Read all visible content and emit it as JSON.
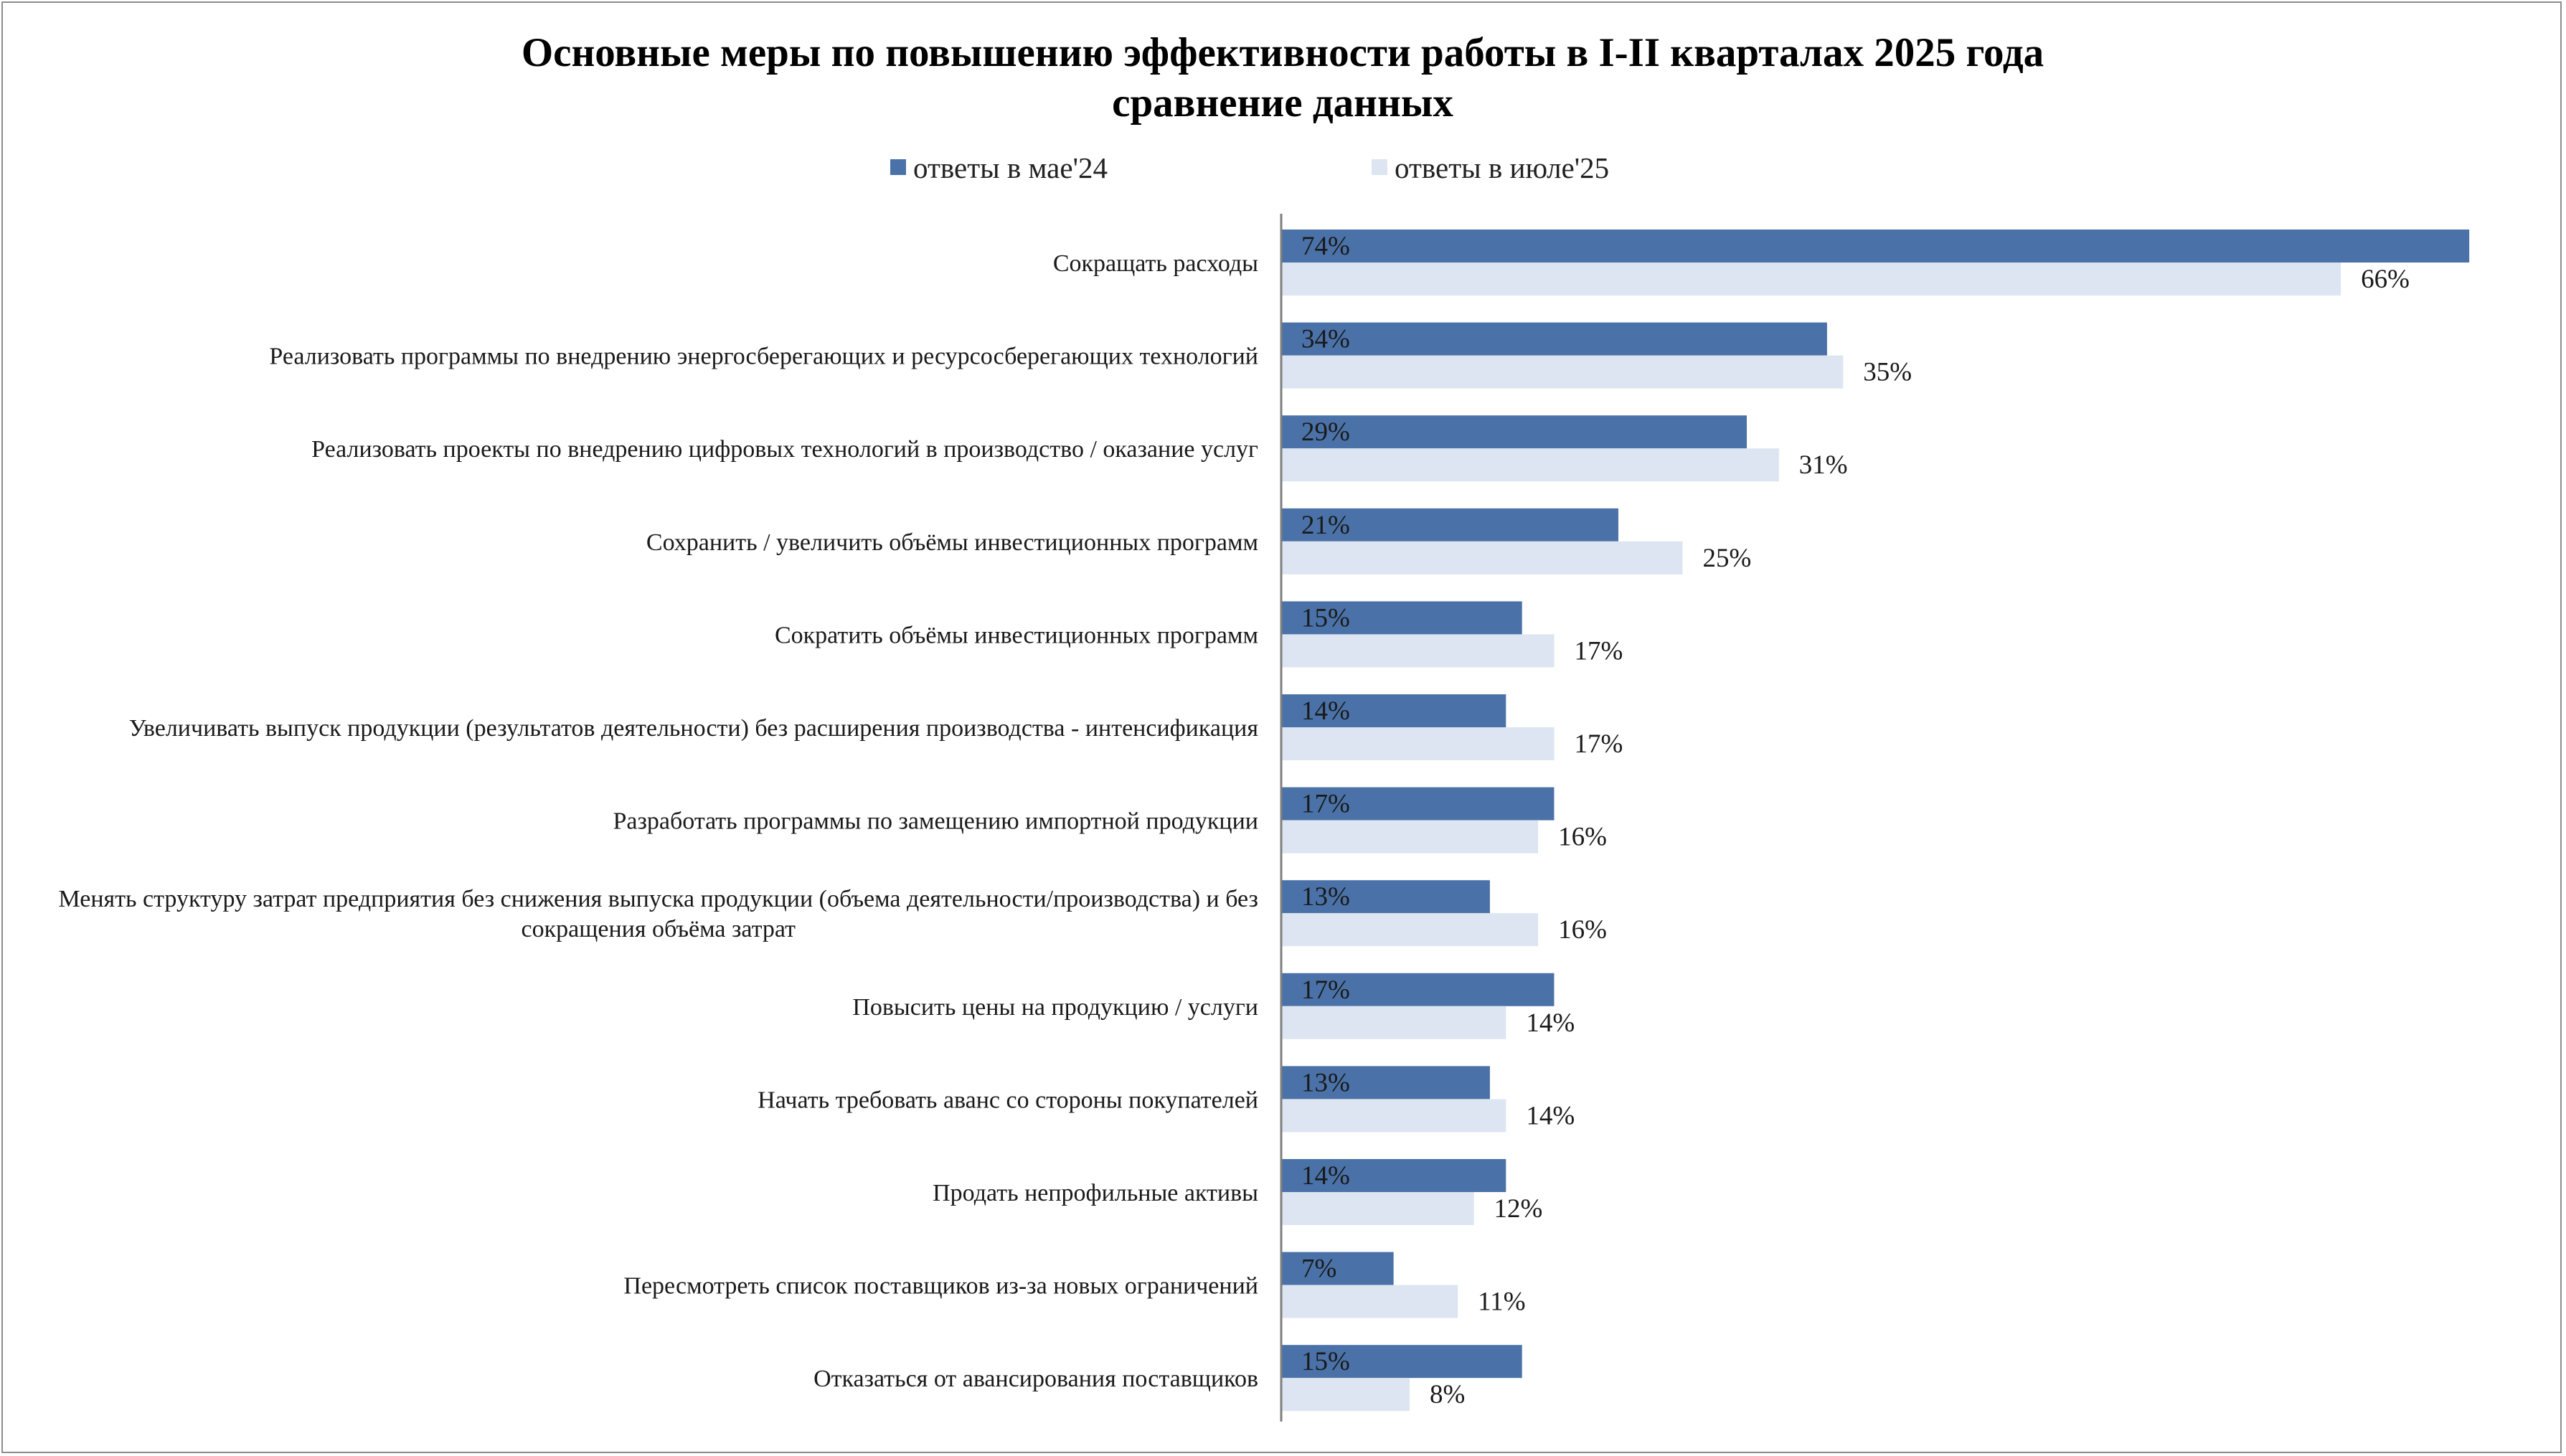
{
  "chart_data": {
    "type": "bar",
    "orientation": "horizontal",
    "title": "Основные меры по повышению эффективности работы в I-II кварталах 2025 года",
    "subtitle": "сравнение данных",
    "xlim": [
      0,
      75
    ],
    "grid": false,
    "legend_position": "top",
    "colors": {
      "series_1": "#4a72a8",
      "series_2": "#dce5f1",
      "axis": "#7f7f7f",
      "frame": "#8c8c8c"
    },
    "categories": [
      "Сокращать расходы",
      "Реализовать программы по внедрению энергосберегающих и ресурсосберегающих технологий",
      "Реализовать проекты по внедрению цифровых технологий в производство / оказание услуг",
      "Сохранить / увеличить объёмы инвестиционных программ",
      "Сократить объёмы инвестиционных программ",
      "Увеличивать выпуск продукции (результатов деятельности) без расширения производства - интенсификация",
      "Разработать программы по замещению импортной продукции",
      "Менять структуру затрат предприятия без снижения выпуска продукции (объема деятельности/производства) и без сокращения объёма затрат",
      "Повысить цены на продукцию / услуги",
      "Начать требовать аванс со стороны покупателей",
      "Продать непрофильные активы",
      "Пересмотреть список поставщиков из-за новых ограничений",
      "Отказаться от авансирования поставщиков"
    ],
    "category_lines": [
      [
        "Сокращать расходы"
      ],
      [
        "Реализовать программы по внедрению энергосберегающих и ресурсосберегающих технологий"
      ],
      [
        "Реализовать проекты по внедрению цифровых технологий в производство / оказание услуг"
      ],
      [
        "Сохранить / увеличить объёмы инвестиционных программ"
      ],
      [
        "Сократить объёмы инвестиционных программ"
      ],
      [
        "Увеличивать выпуск продукции (результатов деятельности) без расширения производства - интенсификация"
      ],
      [
        "Разработать программы по замещению импортной продукции"
      ],
      [
        "Менять структуру затрат предприятия без снижения выпуска продукции (объема деятельности/производства) и без",
        "сокращения объёма затрат"
      ],
      [
        "Повысить цены на продукцию / услуги"
      ],
      [
        "Начать требовать аванс со стороны покупателей"
      ],
      [
        "Продать непрофильные активы"
      ],
      [
        "Пересмотреть список поставщиков из-за новых ограничений"
      ],
      [
        "Отказаться от авансирования поставщиков"
      ]
    ],
    "series": [
      {
        "name": "ответы в мае'24",
        "values": [
          74,
          34,
          29,
          21,
          15,
          14,
          17,
          13,
          17,
          13,
          14,
          7,
          15
        ],
        "labels": [
          "74%",
          "34%",
          "29%",
          "21%",
          "15%",
          "14%",
          "17%",
          "13%",
          "17%",
          "13%",
          "14%",
          "7%",
          "15%"
        ]
      },
      {
        "name": "ответы в июле'25",
        "values": [
          66,
          35,
          31,
          25,
          17,
          17,
          16,
          16,
          14,
          14,
          12,
          11,
          8
        ],
        "labels": [
          "66%",
          "35%",
          "31%",
          "25%",
          "17%",
          "17%",
          "16%",
          "16%",
          "14%",
          "14%",
          "12%",
          "11%",
          "8%"
        ]
      }
    ]
  }
}
